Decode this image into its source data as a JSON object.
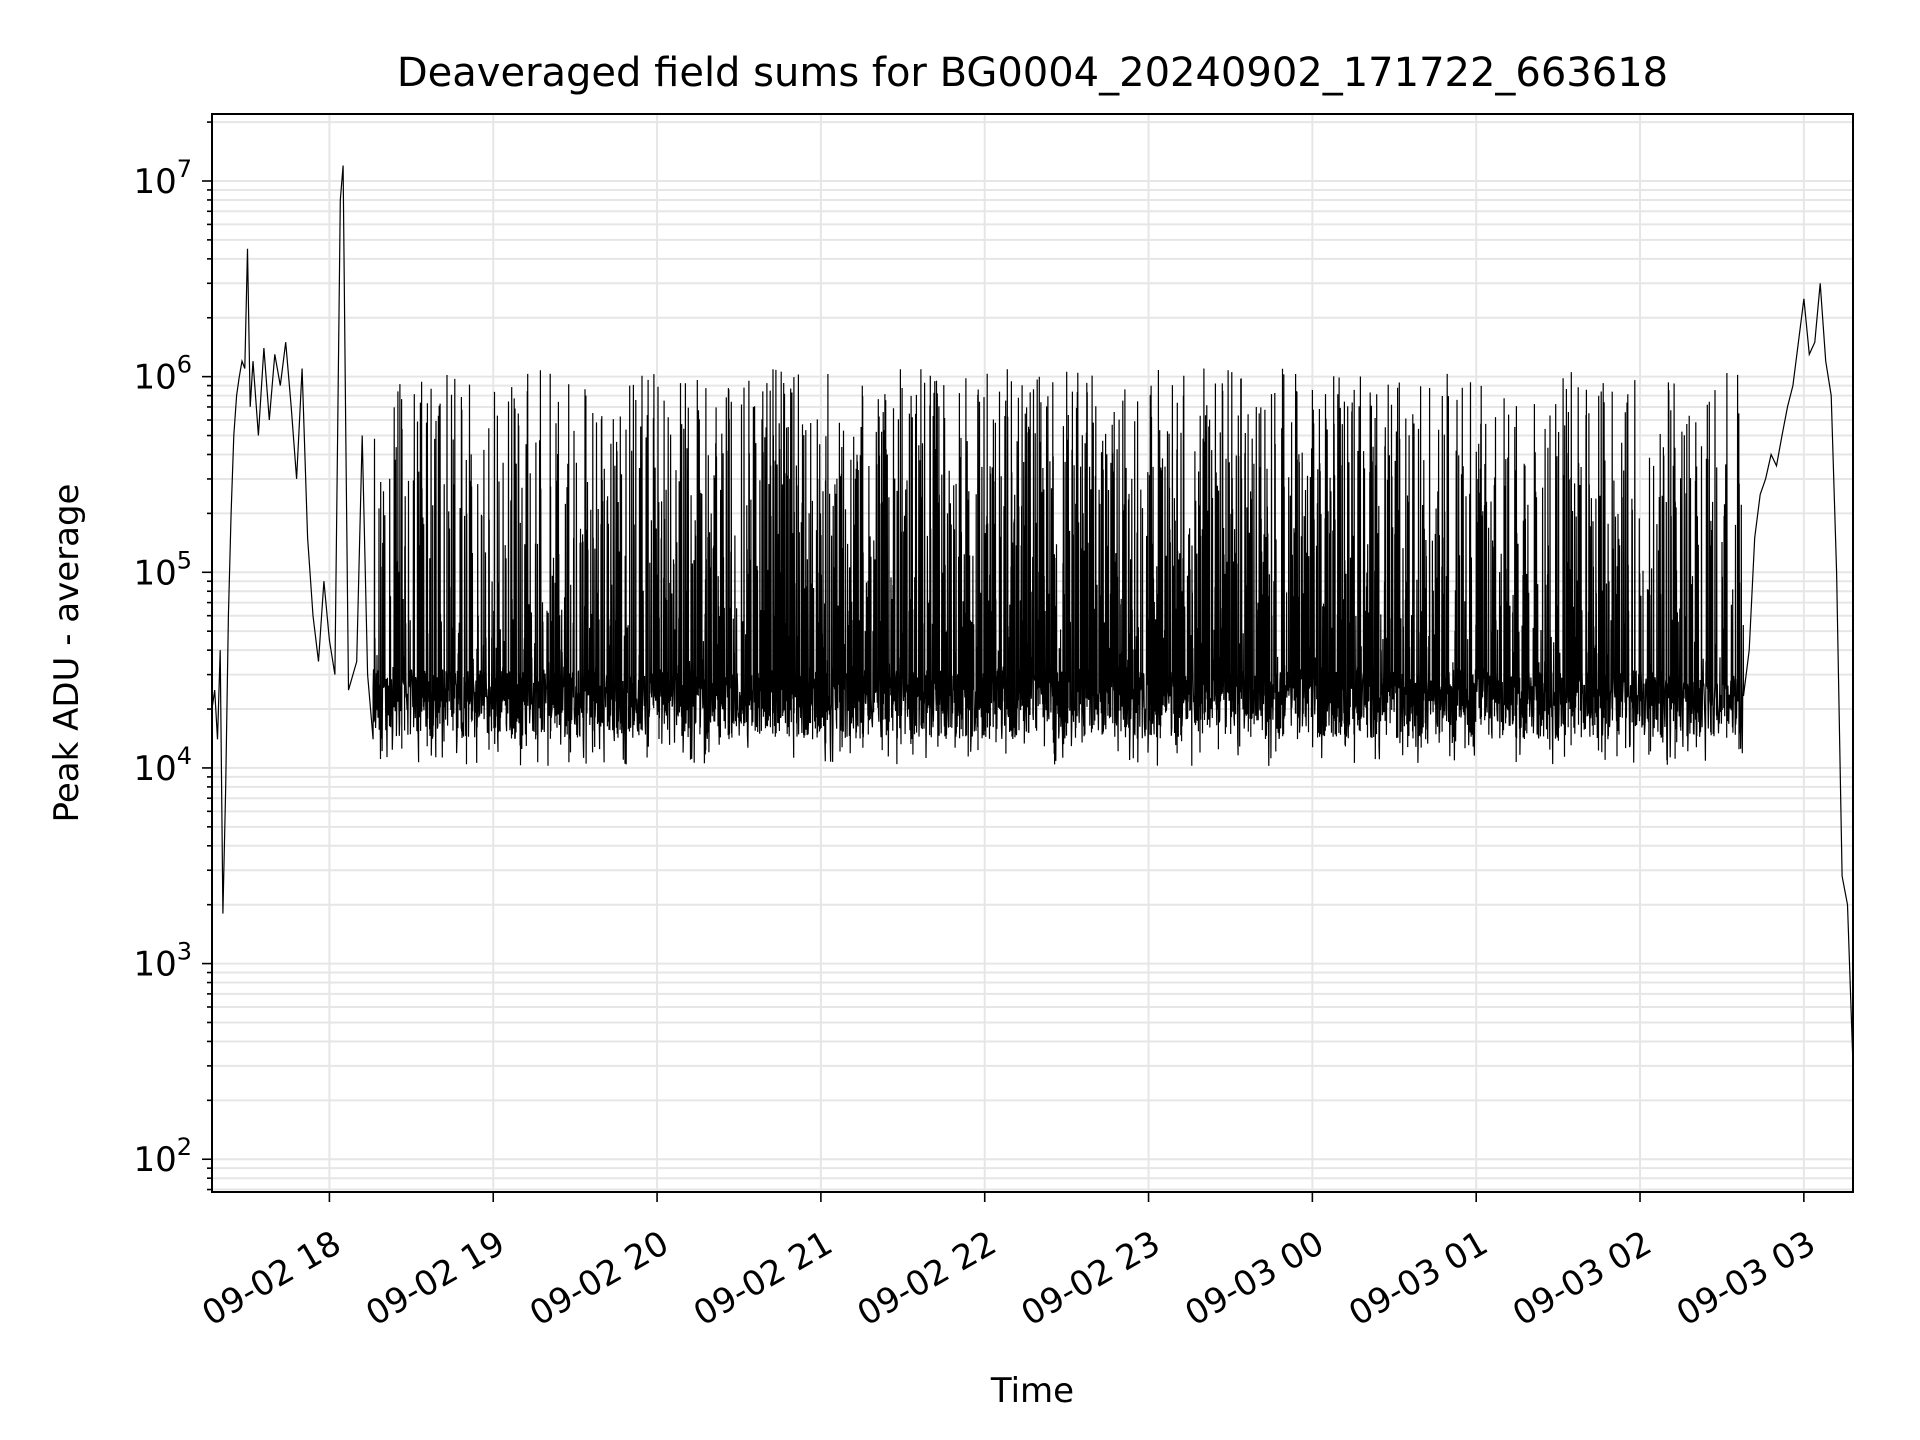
{
  "chart_data": {
    "type": "line",
    "title": "Deaveraged field sums for BG0004_20240902_171722_663618",
    "xlabel": "Time",
    "ylabel": "Peak ADU - average",
    "yscale": "log",
    "grid": true,
    "line_color": "#000000",
    "grid_color": "#e6e6e6",
    "xlim": [
      "2024-09-02 17:17",
      "2024-09-03 03:18"
    ],
    "ylim": [
      68,
      22000000
    ],
    "x_ticks": [
      {
        "value": "2024-09-02 18:00",
        "label": "09-02 18"
      },
      {
        "value": "2024-09-02 19:00",
        "label": "09-02 19"
      },
      {
        "value": "2024-09-02 20:00",
        "label": "09-02 20"
      },
      {
        "value": "2024-09-02 21:00",
        "label": "09-02 21"
      },
      {
        "value": "2024-09-02 22:00",
        "label": "09-02 22"
      },
      {
        "value": "2024-09-02 23:00",
        "label": "09-02 23"
      },
      {
        "value": "2024-09-03 00:00",
        "label": "09-03 00"
      },
      {
        "value": "2024-09-03 01:00",
        "label": "09-03 01"
      },
      {
        "value": "2024-09-03 02:00",
        "label": "09-03 02"
      },
      {
        "value": "2024-09-03 03:00",
        "label": "09-03 03"
      }
    ],
    "y_ticks": [
      {
        "value": 100,
        "base": "10",
        "exp": "2"
      },
      {
        "value": 1000,
        "base": "10",
        "exp": "3"
      },
      {
        "value": 10000,
        "base": "10",
        "exp": "4"
      },
      {
        "value": 100000,
        "base": "10",
        "exp": "5"
      },
      {
        "value": 1000000,
        "base": "10",
        "exp": "6"
      },
      {
        "value": 10000000,
        "base": "10",
        "exp": "7"
      }
    ],
    "series": [
      {
        "points": [
          [
            "2024-09-02 17:17",
            20000
          ],
          [
            "2024-09-02 17:18",
            25000
          ],
          [
            "2024-09-02 17:19",
            14000
          ],
          [
            "2024-09-02 17:20",
            40000
          ],
          [
            "2024-09-02 17:21",
            1800
          ],
          [
            "2024-09-02 17:22",
            8000
          ],
          [
            "2024-09-02 17:23",
            60000
          ],
          [
            "2024-09-02 17:24",
            200000
          ],
          [
            "2024-09-02 17:25",
            500000
          ],
          [
            "2024-09-02 17:26",
            800000
          ],
          [
            "2024-09-02 17:27",
            1000000
          ],
          [
            "2024-09-02 17:28",
            1200000
          ],
          [
            "2024-09-02 17:29",
            1100000
          ],
          [
            "2024-09-02 17:30",
            4500000
          ],
          [
            "2024-09-02 17:31",
            700000
          ],
          [
            "2024-09-02 17:32",
            1200000
          ],
          [
            "2024-09-02 17:34",
            500000
          ],
          [
            "2024-09-02 17:36",
            1400000
          ],
          [
            "2024-09-02 17:38",
            600000
          ],
          [
            "2024-09-02 17:40",
            1300000
          ],
          [
            "2024-09-02 17:42",
            900000
          ],
          [
            "2024-09-02 17:44",
            1500000
          ],
          [
            "2024-09-02 17:46",
            700000
          ],
          [
            "2024-09-02 17:48",
            300000
          ],
          [
            "2024-09-02 17:50",
            1100000
          ],
          [
            "2024-09-02 17:52",
            150000
          ],
          [
            "2024-09-02 17:54",
            60000
          ],
          [
            "2024-09-02 17:56",
            35000
          ],
          [
            "2024-09-02 17:58",
            90000
          ],
          [
            "2024-09-02 18:00",
            45000
          ],
          [
            "2024-09-02 18:02",
            30000
          ],
          [
            "2024-09-02 18:04",
            8000000
          ],
          [
            "2024-09-02 18:05",
            12000000
          ],
          [
            "2024-09-02 18:06",
            500000
          ],
          [
            "2024-09-02 18:07",
            25000
          ],
          [
            "2024-09-02 18:10",
            35000
          ],
          [
            "2024-09-02 18:12",
            500000
          ],
          [
            "2024-09-02 18:14",
            30000
          ],
          [
            "2024-09-02 18:16",
            14000
          ]
        ]
      }
    ],
    "band": {
      "x_start": "2024-09-02 18:16",
      "x_end": "2024-09-03 02:38",
      "low_typical": 20000,
      "low_min": 12000,
      "high_max": 1100000
    },
    "tail_points": [
      [
        "2024-09-03 02:40",
        40000
      ],
      [
        "2024-09-03 02:42",
        150000
      ],
      [
        "2024-09-03 02:44",
        250000
      ],
      [
        "2024-09-03 02:46",
        300000
      ],
      [
        "2024-09-03 02:48",
        400000
      ],
      [
        "2024-09-03 02:50",
        350000
      ],
      [
        "2024-09-03 02:52",
        500000
      ],
      [
        "2024-09-03 02:54",
        700000
      ],
      [
        "2024-09-03 02:56",
        900000
      ],
      [
        "2024-09-03 02:58",
        1500000
      ],
      [
        "2024-09-03 03:00",
        2500000
      ],
      [
        "2024-09-03 03:02",
        1300000
      ],
      [
        "2024-09-03 03:04",
        1500000
      ],
      [
        "2024-09-03 03:06",
        3000000
      ],
      [
        "2024-09-03 03:08",
        1200000
      ],
      [
        "2024-09-03 03:10",
        800000
      ],
      [
        "2024-09-03 03:12",
        100000
      ],
      [
        "2024-09-03 03:14",
        2800
      ],
      [
        "2024-09-03 03:16",
        2000
      ],
      [
        "2024-09-03 03:18",
        300
      ]
    ]
  }
}
